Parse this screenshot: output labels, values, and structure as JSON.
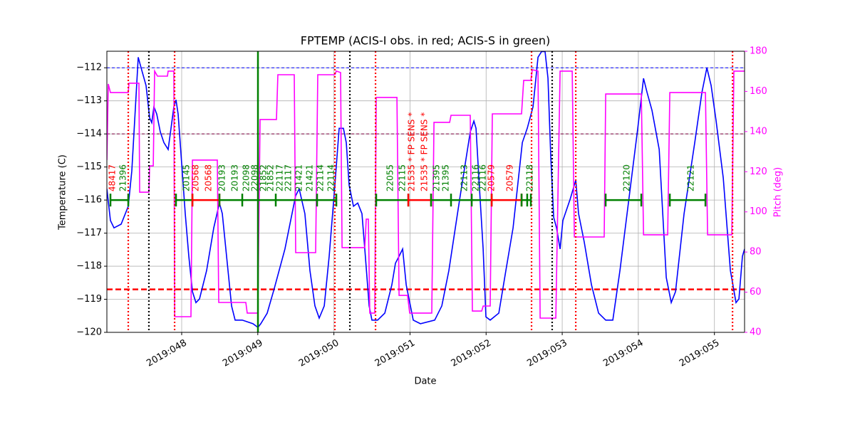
{
  "chart_data": {
    "type": "line",
    "title": "FPTEMP (ACIS-I obs. in red; ACIS-S in green)",
    "x_label": "Date",
    "y_label": "Temperature (C)",
    "y2_label": "Pitch (deg)",
    "y2_color": "#ff00ff",
    "grid": true,
    "xlim": [
      47.017,
      55.396
    ],
    "ylim": [
      -120,
      -111.5
    ],
    "y2lim": [
      40,
      180
    ],
    "xticks": [
      {
        "value": 48,
        "label": "2019:048"
      },
      {
        "value": 49,
        "label": "2019:049"
      },
      {
        "value": 50,
        "label": "2019:050"
      },
      {
        "value": 51,
        "label": "2019:051"
      },
      {
        "value": 52,
        "label": "2019:052"
      },
      {
        "value": 53,
        "label": "2019:053"
      },
      {
        "value": 54,
        "label": "2019:054"
      },
      {
        "value": 55,
        "label": "2019:055"
      }
    ],
    "yticks": [
      {
        "value": -120,
        "label": "−120"
      },
      {
        "value": -119,
        "label": "−119"
      },
      {
        "value": -118,
        "label": "−118"
      },
      {
        "value": -117,
        "label": "−117"
      },
      {
        "value": -116,
        "label": "−116"
      },
      {
        "value": -115,
        "label": "−115"
      },
      {
        "value": -114,
        "label": "−114"
      },
      {
        "value": -113,
        "label": "−113"
      },
      {
        "value": -112,
        "label": "−112"
      }
    ],
    "y2ticks": [
      40,
      60,
      80,
      100,
      120,
      140,
      160,
      180
    ],
    "series": [
      {
        "color": "#0000ff",
        "x": [
          47.017,
          47.064,
          47.111,
          47.204,
          47.298,
          47.345,
          47.392,
          47.429,
          47.466,
          47.532,
          47.579,
          47.607,
          47.635,
          47.672,
          47.719,
          47.766,
          47.822,
          47.86,
          47.897,
          47.925,
          47.953,
          48.0,
          48.047,
          48.094,
          48.141,
          48.187,
          48.234,
          48.328,
          48.421,
          48.496,
          48.534,
          48.59,
          48.655,
          48.702,
          48.796,
          48.936,
          49.002,
          49.039,
          49.123,
          49.217,
          49.357,
          49.497,
          49.544,
          49.619,
          49.685,
          49.751,
          49.807,
          49.873,
          49.938,
          50.013,
          50.069,
          50.125,
          50.163,
          50.2,
          50.257,
          50.313,
          50.369,
          50.406,
          50.463,
          50.5,
          50.575,
          50.669,
          50.762,
          50.809,
          50.856,
          50.903,
          50.95,
          51.043,
          51.137,
          51.324,
          51.418,
          51.511,
          51.652,
          51.792,
          51.839,
          51.867,
          51.905,
          51.961,
          51.998,
          52.054,
          52.167,
          52.26,
          52.354,
          52.476,
          52.541,
          52.616,
          52.682,
          52.729,
          52.775,
          52.813,
          52.85,
          52.888,
          52.925,
          52.972,
          53.009,
          53.103,
          53.178,
          53.215,
          53.29,
          53.384,
          53.478,
          53.571,
          53.665,
          53.759,
          53.852,
          53.993,
          54.068,
          54.115,
          54.18,
          54.274,
          54.367,
          54.433,
          54.489,
          54.601,
          54.742,
          54.835,
          54.901,
          54.957,
          55.022,
          55.116,
          55.21,
          55.284,
          55.322,
          55.368,
          55.396
        ],
        "values": [
          -115.66,
          -116.62,
          -116.84,
          -116.73,
          -116.19,
          -115.12,
          -113.18,
          -111.68,
          -112.0,
          -112.54,
          -113.51,
          -113.66,
          -113.18,
          -113.4,
          -113.94,
          -114.26,
          -114.47,
          -113.83,
          -113.18,
          -112.97,
          -113.4,
          -114.9,
          -116.41,
          -117.7,
          -118.77,
          -119.1,
          -118.99,
          -118.13,
          -116.84,
          -116.09,
          -116.41,
          -117.7,
          -119.2,
          -119.63,
          -119.63,
          -119.74,
          -119.85,
          -119.74,
          -119.42,
          -118.67,
          -117.48,
          -115.87,
          -115.66,
          -116.41,
          -118.13,
          -119.2,
          -119.57,
          -119.2,
          -117.7,
          -115.55,
          -113.83,
          -113.83,
          -114.26,
          -115.55,
          -116.19,
          -116.09,
          -116.41,
          -117.48,
          -119.2,
          -119.63,
          -119.63,
          -119.42,
          -118.56,
          -117.91,
          -117.7,
          -117.48,
          -118.56,
          -119.63,
          -119.74,
          -119.63,
          -119.2,
          -118.13,
          -115.98,
          -113.94,
          -113.61,
          -113.83,
          -115.33,
          -117.48,
          -119.53,
          -119.63,
          -119.42,
          -118.13,
          -116.84,
          -114.26,
          -113.83,
          -113.18,
          -111.68,
          -111.51,
          -111.51,
          -112.32,
          -114.69,
          -116.52,
          -116.84,
          -117.48,
          -116.62,
          -115.98,
          -115.4,
          -116.41,
          -117.27,
          -118.56,
          -119.42,
          -119.63,
          -119.63,
          -118.13,
          -116.41,
          -113.83,
          -112.32,
          -112.75,
          -113.29,
          -114.47,
          -118.34,
          -119.1,
          -118.77,
          -116.41,
          -114.26,
          -112.75,
          -112.0,
          -112.54,
          -113.61,
          -115.33,
          -118.13,
          -119.1,
          -118.99,
          -117.7,
          -117.48
        ]
      },
      {
        "color": "#ff00ff",
        "axis": "y2",
        "x": [
          47.017,
          47.036,
          47.064,
          47.298,
          47.307,
          47.438,
          47.448,
          47.569,
          47.579,
          47.626,
          47.644,
          47.682,
          47.813,
          47.822,
          47.897,
          47.907,
          48.122,
          48.141,
          48.468,
          48.487,
          48.843,
          48.861,
          49.002,
          49.03,
          49.245,
          49.264,
          49.479,
          49.498,
          49.76,
          49.788,
          50.013,
          50.032,
          50.088,
          50.107,
          50.406,
          50.425,
          50.453,
          50.472,
          50.537,
          50.556,
          50.828,
          50.856,
          50.968,
          50.996,
          51.286,
          51.315,
          51.521,
          51.539,
          51.792,
          51.82,
          51.942,
          51.961,
          52.054,
          52.082,
          52.466,
          52.494,
          52.588,
          52.607,
          52.682,
          52.71,
          52.916,
          52.972,
          53.131,
          53.159,
          53.552,
          53.571,
          54.039,
          54.068,
          54.386,
          54.414,
          54.882,
          54.91,
          55.228,
          55.256,
          55.396
        ],
        "values": [
          125.8,
          163.7,
          159.4,
          159.4,
          164.1,
          164.1,
          109.8,
          109.8,
          122.9,
          122.9,
          170.1,
          167.6,
          167.6,
          170.1,
          170.1,
          47.8,
          47.8,
          125.8,
          125.8,
          54.9,
          54.9,
          49.6,
          49.6,
          146.0,
          146.0,
          168.3,
          168.3,
          79.7,
          79.7,
          168.3,
          168.3,
          170.1,
          169.4,
          82.2,
          82.2,
          96.4,
          96.4,
          49.6,
          49.6,
          157.0,
          157.0,
          58.4,
          58.4,
          49.6,
          49.6,
          144.6,
          144.6,
          148.1,
          148.1,
          50.6,
          50.6,
          53.1,
          53.1,
          148.8,
          148.8,
          165.5,
          165.5,
          170.8,
          170.1,
          47.1,
          47.1,
          170.1,
          170.1,
          87.5,
          87.5,
          158.7,
          158.7,
          88.6,
          88.6,
          159.4,
          159.4,
          88.6,
          88.6,
          170.1,
          170.1
        ]
      }
    ],
    "hlines": [
      {
        "value": -112,
        "color": "#0000ff",
        "style": "dashed"
      },
      {
        "value": -114,
        "color": "#800040",
        "style": "dashed"
      },
      {
        "value": -118.7,
        "color": "#ff0000",
        "style": "thick-dashed"
      }
    ],
    "vlines": [
      {
        "value": 47.298,
        "color": "#ff0000",
        "style": "dotted"
      },
      {
        "value": 47.569,
        "color": "#000000",
        "style": "dotted"
      },
      {
        "value": 47.907,
        "color": "#ff0000",
        "style": "dotted"
      },
      {
        "value": 49.002,
        "color": "#008000",
        "style": "solid"
      },
      {
        "value": 50.013,
        "color": "#ff0000",
        "style": "dotted"
      },
      {
        "value": 50.21,
        "color": "#000000",
        "style": "dotted"
      },
      {
        "value": 50.547,
        "color": "#ff0000",
        "style": "dotted"
      },
      {
        "value": 52.597,
        "color": "#ff0000",
        "style": "dotted"
      },
      {
        "value": 52.868,
        "color": "#000000",
        "style": "dotted"
      },
      {
        "value": 53.178,
        "color": "#ff0000",
        "style": "dotted"
      },
      {
        "value": 55.238,
        "color": "#ff0000",
        "style": "dotted"
      }
    ],
    "obs_level": -116,
    "obs_segments": [
      {
        "start": 47.064,
        "end": 47.298,
        "color": "#008000"
      },
      {
        "start": 47.925,
        "end": 48.141,
        "color": "#008000"
      },
      {
        "start": 48.141,
        "end": 48.496,
        "color": "#ff0000"
      },
      {
        "start": 48.496,
        "end": 50.032,
        "color": "#008000"
      },
      {
        "start": 50.556,
        "end": 50.978,
        "color": "#008000"
      },
      {
        "start": 50.978,
        "end": 51.277,
        "color": "#ff0000"
      },
      {
        "start": 51.277,
        "end": 52.073,
        "color": "#008000"
      },
      {
        "start": 52.073,
        "end": 52.466,
        "color": "#ff0000"
      },
      {
        "start": 52.466,
        "end": 52.588,
        "color": "#008000"
      },
      {
        "start": 53.571,
        "end": 54.039,
        "color": "#008000"
      },
      {
        "start": 54.414,
        "end": 54.882,
        "color": "#008000"
      }
    ],
    "obs_ticks": [
      48.796,
      49.236,
      49.779,
      51.539,
      51.811,
      52.54
    ],
    "obs_labels": [
      {
        "text": "48417",
        "x": 47.092,
        "color": "#ff0000"
      },
      {
        "text": "21396",
        "x": 47.232,
        "color": "#008000"
      },
      {
        "text": "20145",
        "x": 48.066,
        "color": "#008000"
      },
      {
        "text": "20568",
        "x": 48.187,
        "color": "#ff0000"
      },
      {
        "text": "20568",
        "x": 48.356,
        "color": "#ff0000"
      },
      {
        "text": "20193",
        "x": 48.534,
        "color": "#008000"
      },
      {
        "text": "20193",
        "x": 48.702,
        "color": "#008000"
      },
      {
        "text": "22098",
        "x": 48.852,
        "color": "#008000"
      },
      {
        "text": "22098",
        "x": 48.964,
        "color": "#008000"
      },
      {
        "text": "21852",
        "x": 49.077,
        "color": "#008000"
      },
      {
        "text": "21852",
        "x": 49.17,
        "color": "#008000"
      },
      {
        "text": "22117",
        "x": 49.292,
        "color": "#008000"
      },
      {
        "text": "22117",
        "x": 49.404,
        "color": "#008000"
      },
      {
        "text": "21421",
        "x": 49.544,
        "color": "#008000"
      },
      {
        "text": "21421",
        "x": 49.685,
        "color": "#008000"
      },
      {
        "text": "22114",
        "x": 49.826,
        "color": "#008000"
      },
      {
        "text": "22114",
        "x": 49.966,
        "color": "#008000"
      },
      {
        "text": "22055",
        "x": 50.743,
        "color": "#008000"
      },
      {
        "text": "22115",
        "x": 50.903,
        "color": "#008000"
      },
      {
        "text": "21535 * FP SENS *",
        "x": 51.024,
        "color": "#ff0000"
      },
      {
        "text": "21535 * FP SENS *",
        "x": 51.193,
        "color": "#ff0000"
      },
      {
        "text": "21395",
        "x": 51.352,
        "color": "#008000"
      },
      {
        "text": "21395",
        "x": 51.474,
        "color": "#008000"
      },
      {
        "text": "22113",
        "x": 51.717,
        "color": "#008000"
      },
      {
        "text": "22116",
        "x": 51.867,
        "color": "#008000"
      },
      {
        "text": "22116",
        "x": 51.961,
        "color": "#008000"
      },
      {
        "text": "20579",
        "x": 52.073,
        "color": "#ff0000"
      },
      {
        "text": "20579",
        "x": 52.316,
        "color": "#ff0000"
      },
      {
        "text": "22118",
        "x": 52.579,
        "color": "#008000"
      },
      {
        "text": "22120",
        "x": 53.852,
        "color": "#008000"
      },
      {
        "text": "22121",
        "x": 54.695,
        "color": "#008000"
      }
    ]
  }
}
